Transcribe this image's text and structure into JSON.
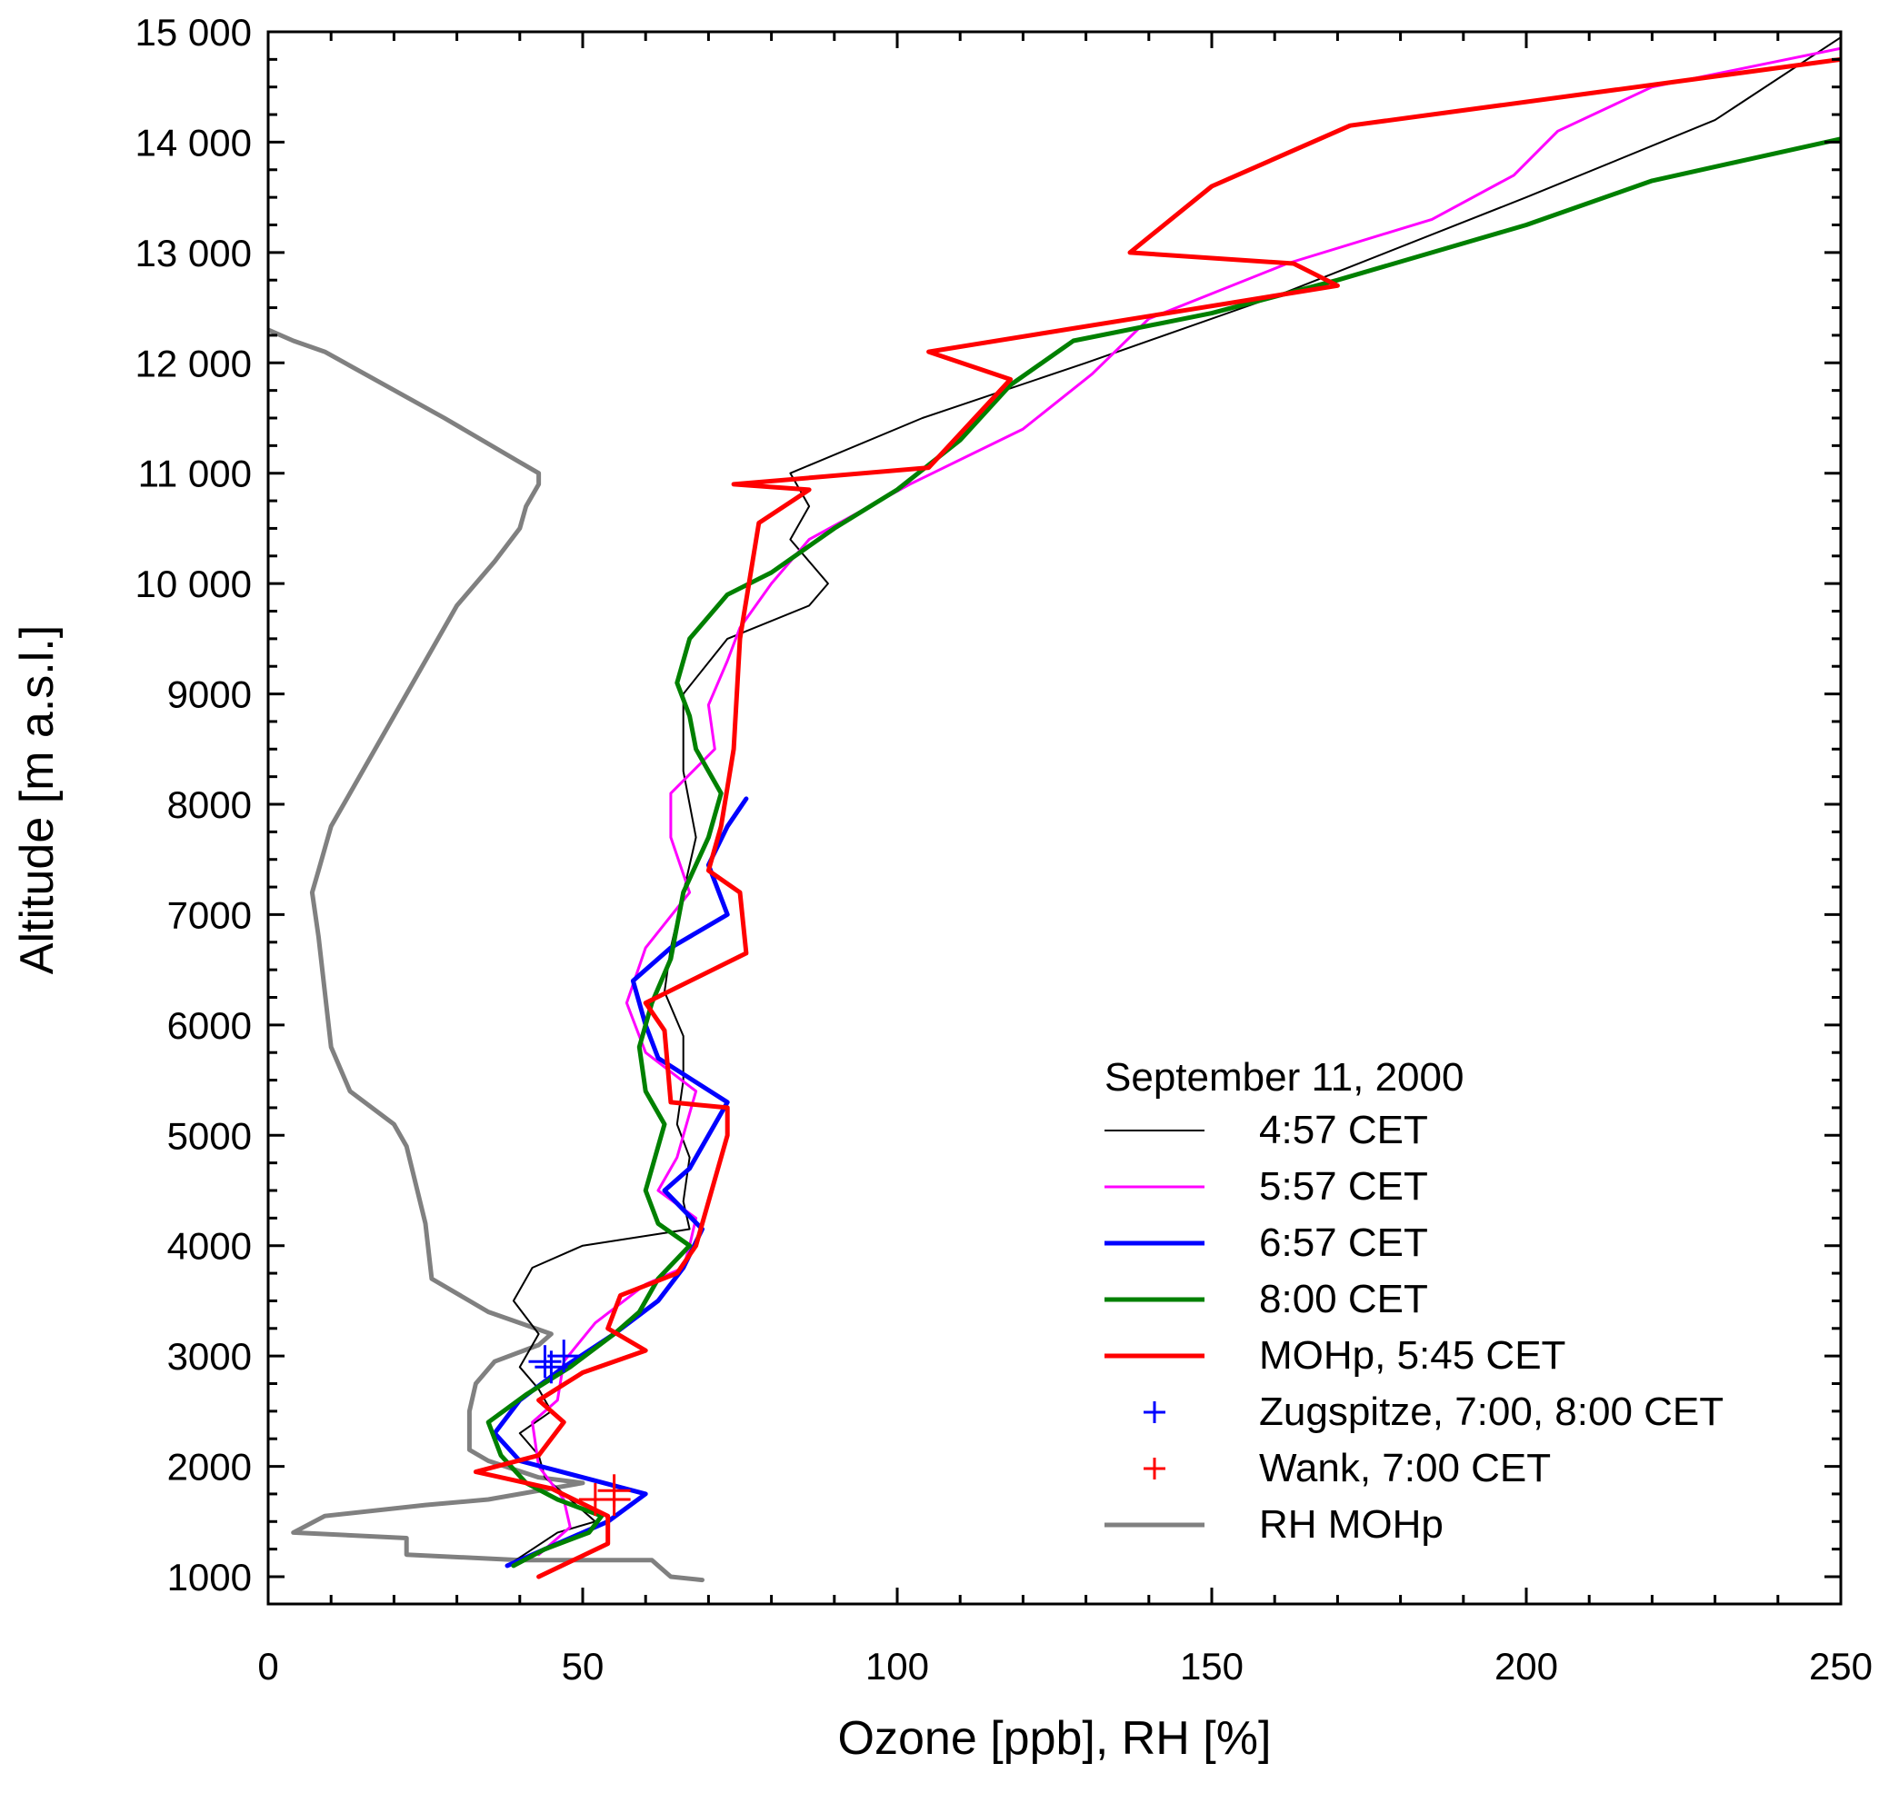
{
  "chart_data": {
    "type": "line",
    "xlabel": "Ozone [ppb], RH [%]",
    "ylabel": "Altitude [m a.s.l.]",
    "xlim": [
      0,
      250
    ],
    "ylim": [
      750,
      15000
    ],
    "x_ticks": [
      {
        "value": 0,
        "label": "0"
      },
      {
        "value": 50,
        "label": "50"
      },
      {
        "value": 100,
        "label": "100"
      },
      {
        "value": 150,
        "label": "150"
      },
      {
        "value": 200,
        "label": "200"
      },
      {
        "value": 250,
        "label": "250"
      }
    ],
    "y_ticks": [
      {
        "value": 1000,
        "label": "1000"
      },
      {
        "value": 2000,
        "label": "2000"
      },
      {
        "value": 3000,
        "label": "3000"
      },
      {
        "value": 4000,
        "label": "4000"
      },
      {
        "value": 5000,
        "label": "5000"
      },
      {
        "value": 6000,
        "label": "6000"
      },
      {
        "value": 7000,
        "label": "7000"
      },
      {
        "value": 8000,
        "label": "8000"
      },
      {
        "value": 9000,
        "label": "9000"
      },
      {
        "value": 10000,
        "label": "10 000"
      },
      {
        "value": 11000,
        "label": "11 000"
      },
      {
        "value": 12000,
        "label": "12 000"
      },
      {
        "value": 13000,
        "label": "13 000"
      },
      {
        "value": 14000,
        "label": "14 000"
      },
      {
        "value": 15000,
        "label": "15 000"
      }
    ],
    "legend": {
      "title": "September 11, 2000",
      "position": "bottom-right"
    },
    "series": [
      {
        "name": "4:57 CET",
        "color": "#000000",
        "style": "line",
        "width": "thin",
        "points": [
          [
            38,
            1100
          ],
          [
            46,
            1400
          ],
          [
            52,
            1500
          ],
          [
            48,
            1700
          ],
          [
            44,
            1900
          ],
          [
            43,
            2100
          ],
          [
            40,
            2300
          ],
          [
            45,
            2500
          ],
          [
            43,
            2700
          ],
          [
            40,
            2900
          ],
          [
            43,
            3200
          ],
          [
            39,
            3500
          ],
          [
            42,
            3800
          ],
          [
            50,
            4000
          ],
          [
            67,
            4150
          ],
          [
            66,
            4400
          ],
          [
            67,
            4800
          ],
          [
            65,
            5100
          ],
          [
            66,
            5500
          ],
          [
            66,
            5900
          ],
          [
            63,
            6300
          ],
          [
            64,
            6700
          ],
          [
            66,
            7200
          ],
          [
            68,
            7700
          ],
          [
            66,
            8300
          ],
          [
            66,
            9000
          ],
          [
            73,
            9500
          ],
          [
            86,
            9800
          ],
          [
            89,
            10000
          ],
          [
            83,
            10400
          ],
          [
            86,
            10700
          ],
          [
            83,
            11000
          ],
          [
            104,
            11500
          ],
          [
            130,
            12000
          ],
          [
            160,
            12600
          ],
          [
            200,
            13500
          ],
          [
            230,
            14200
          ],
          [
            250,
            14950
          ]
        ]
      },
      {
        "name": "5:57 CET",
        "color": "#ff00ff",
        "style": "line",
        "width": "medium",
        "points": [
          [
            43,
            1200
          ],
          [
            48,
            1450
          ],
          [
            47,
            1700
          ],
          [
            43,
            2000
          ],
          [
            42,
            2400
          ],
          [
            46,
            2600
          ],
          [
            47,
            2950
          ],
          [
            52,
            3300
          ],
          [
            60,
            3650
          ],
          [
            66,
            3800
          ],
          [
            67,
            4000
          ],
          [
            68,
            4250
          ],
          [
            62,
            4500
          ],
          [
            65,
            4800
          ],
          [
            68,
            5400
          ],
          [
            60,
            5750
          ],
          [
            57,
            6200
          ],
          [
            60,
            6700
          ],
          [
            67,
            7200
          ],
          [
            64,
            7700
          ],
          [
            64,
            8100
          ],
          [
            71,
            8500
          ],
          [
            70,
            8900
          ],
          [
            73,
            9300
          ],
          [
            75,
            9600
          ],
          [
            80,
            10000
          ],
          [
            86,
            10400
          ],
          [
            102,
            10900
          ],
          [
            120,
            11400
          ],
          [
            131,
            11900
          ],
          [
            140,
            12400
          ],
          [
            162,
            12900
          ],
          [
            185,
            13300
          ],
          [
            198,
            13700
          ],
          [
            205,
            14100
          ],
          [
            220,
            14500
          ],
          [
            250,
            14850
          ]
        ]
      },
      {
        "name": "6:57 CET",
        "color": "#0000ff",
        "style": "line",
        "width": "thick",
        "points": [
          [
            38,
            1100
          ],
          [
            46,
            1300
          ],
          [
            54,
            1500
          ],
          [
            60,
            1750
          ],
          [
            50,
            1900
          ],
          [
            40,
            2050
          ],
          [
            36,
            2300
          ],
          [
            40,
            2600
          ],
          [
            47,
            2900
          ],
          [
            55,
            3200
          ],
          [
            62,
            3500
          ],
          [
            66,
            3800
          ],
          [
            69,
            4150
          ],
          [
            63,
            4500
          ],
          [
            67,
            4700
          ],
          [
            73,
            5300
          ],
          [
            62,
            5700
          ],
          [
            60,
            6000
          ],
          [
            58,
            6400
          ],
          [
            64,
            6700
          ],
          [
            73,
            7000
          ],
          [
            70,
            7450
          ],
          [
            73,
            7800
          ],
          [
            76,
            8050
          ]
        ]
      },
      {
        "name": "8:00 CET",
        "color": "#008000",
        "style": "line",
        "width": "thick",
        "points": [
          [
            39,
            1100
          ],
          [
            44,
            1250
          ],
          [
            51,
            1400
          ],
          [
            53,
            1550
          ],
          [
            46,
            1700
          ],
          [
            41,
            1850
          ],
          [
            37,
            2100
          ],
          [
            35,
            2400
          ],
          [
            41,
            2650
          ],
          [
            48,
            2900
          ],
          [
            55,
            3200
          ],
          [
            59,
            3400
          ],
          [
            62,
            3700
          ],
          [
            67,
            4000
          ],
          [
            62,
            4200
          ],
          [
            60,
            4500
          ],
          [
            63,
            5100
          ],
          [
            60,
            5400
          ],
          [
            59,
            5800
          ],
          [
            61,
            6200
          ],
          [
            64,
            6600
          ],
          [
            66,
            7200
          ],
          [
            70,
            7700
          ],
          [
            72,
            8100
          ],
          [
            68,
            8500
          ],
          [
            67,
            8800
          ],
          [
            65,
            9100
          ],
          [
            67,
            9500
          ],
          [
            73,
            9900
          ],
          [
            80,
            10100
          ],
          [
            90,
            10500
          ],
          [
            100,
            10850
          ],
          [
            110,
            11300
          ],
          [
            118,
            11800
          ],
          [
            128,
            12200
          ],
          [
            150,
            12450
          ],
          [
            170,
            12750
          ],
          [
            200,
            13250
          ],
          [
            220,
            13650
          ],
          [
            250,
            14030
          ]
        ]
      },
      {
        "name": "MOHp, 5:45 CET",
        "color": "#ff0000",
        "style": "line",
        "width": "thick",
        "points": [
          [
            43,
            1000
          ],
          [
            54,
            1300
          ],
          [
            54,
            1550
          ],
          [
            45,
            1800
          ],
          [
            33,
            1950
          ],
          [
            43,
            2100
          ],
          [
            47,
            2400
          ],
          [
            43,
            2600
          ],
          [
            50,
            2850
          ],
          [
            60,
            3050
          ],
          [
            54,
            3250
          ],
          [
            56,
            3550
          ],
          [
            65,
            3750
          ],
          [
            68,
            4000
          ],
          [
            73,
            5000
          ],
          [
            73,
            5250
          ],
          [
            64,
            5300
          ],
          [
            63,
            5950
          ],
          [
            60,
            6200
          ],
          [
            76,
            6650
          ],
          [
            75,
            7200
          ],
          [
            70,
            7400
          ],
          [
            72,
            7800
          ],
          [
            74,
            8500
          ],
          [
            75,
            9500
          ],
          [
            78,
            10550
          ],
          [
            86,
            10850
          ],
          [
            74,
            10900
          ],
          [
            105,
            11050
          ],
          [
            118,
            11850
          ],
          [
            105,
            12100
          ],
          [
            170,
            12700
          ],
          [
            163,
            12900
          ],
          [
            137,
            13000
          ],
          [
            150,
            13600
          ],
          [
            172,
            14150
          ],
          [
            250,
            14750
          ]
        ]
      },
      {
        "name": "Zugspitze, 7:00, 8:00 CET",
        "color": "#0000ff",
        "style": "marker",
        "points": [
          [
            44,
            2950
          ],
          [
            47,
            3000
          ],
          [
            45,
            2900
          ]
        ]
      },
      {
        "name": "Wank, 7:00 CET",
        "color": "#ff0000",
        "style": "marker",
        "points": [
          [
            55,
            1780
          ],
          [
            55,
            1700
          ],
          [
            52,
            1700
          ]
        ]
      },
      {
        "name": "RH MOHp",
        "color": "#808080",
        "style": "line",
        "width": "thick",
        "points": [
          [
            0,
            12300
          ],
          [
            4,
            12200
          ],
          [
            9,
            12100
          ],
          [
            28,
            11500
          ],
          [
            40,
            11100
          ],
          [
            43,
            11000
          ],
          [
            43,
            10900
          ],
          [
            41,
            10700
          ],
          [
            40,
            10500
          ],
          [
            36,
            10200
          ],
          [
            30,
            9800
          ],
          [
            25,
            9300
          ],
          [
            20,
            8800
          ],
          [
            13,
            8100
          ],
          [
            10,
            7800
          ],
          [
            8,
            7400
          ],
          [
            7,
            7200
          ],
          [
            8,
            6800
          ],
          [
            9,
            6300
          ],
          [
            10,
            5800
          ],
          [
            13,
            5400
          ],
          [
            20,
            5100
          ],
          [
            22,
            4900
          ],
          [
            25,
            4200
          ],
          [
            26,
            3700
          ],
          [
            35,
            3400
          ],
          [
            45,
            3200
          ],
          [
            43,
            3100
          ],
          [
            36,
            2950
          ],
          [
            33,
            2750
          ],
          [
            32,
            2500
          ],
          [
            32,
            2150
          ],
          [
            35,
            2050
          ],
          [
            43,
            1900
          ],
          [
            50,
            1850
          ],
          [
            35,
            1700
          ],
          [
            25,
            1650
          ],
          [
            9,
            1550
          ],
          [
            4,
            1400
          ],
          [
            22,
            1350
          ],
          [
            22,
            1200
          ],
          [
            40,
            1150
          ],
          [
            61,
            1150
          ],
          [
            62,
            1100
          ],
          [
            64,
            1000
          ],
          [
            69,
            970
          ]
        ]
      }
    ]
  }
}
